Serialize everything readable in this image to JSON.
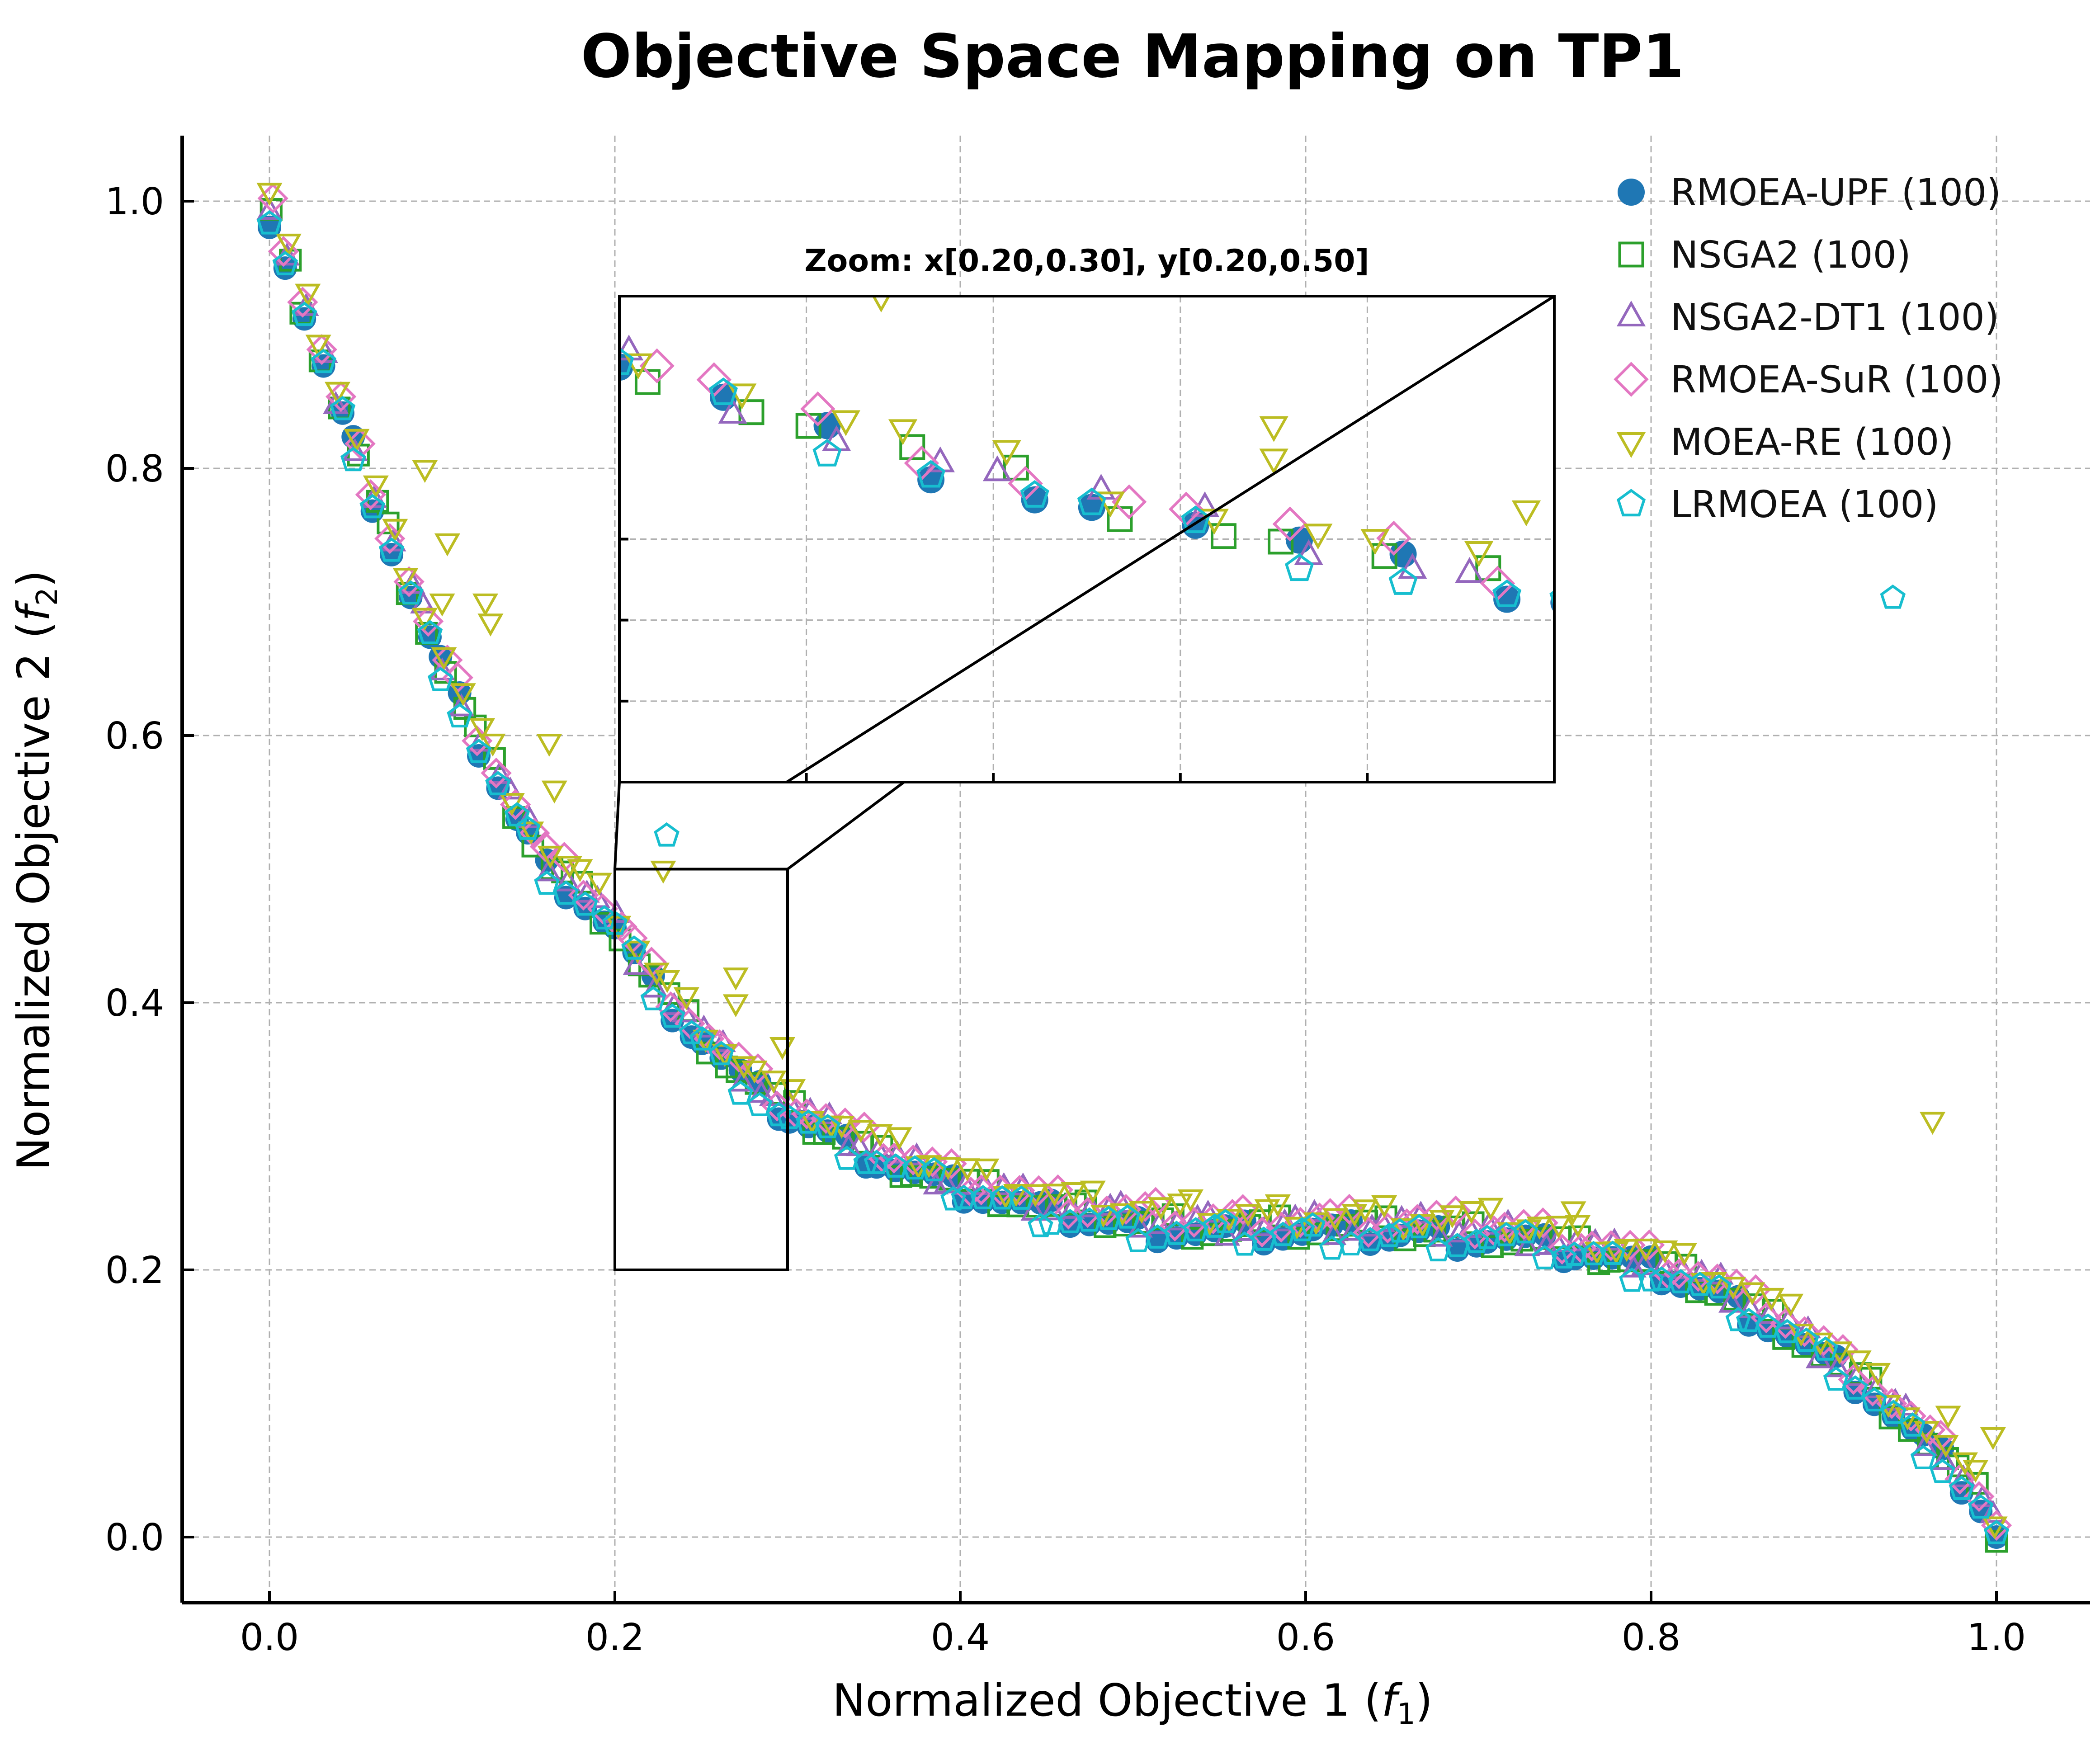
{
  "chart_data": {
    "type": "scatter",
    "title": "Objective Space Mapping on TP1",
    "xlabel": "Normalized Objective 1",
    "xlabel_sym": "f",
    "xlabel_sub": "1",
    "ylabel": "Normalized Objective 2",
    "ylabel_sym": "f",
    "ylabel_sub": "2",
    "xlim": [
      -0.05,
      1.05
    ],
    "ylim": [
      -0.05,
      1.05
    ],
    "xticks": [
      0.0,
      0.2,
      0.4,
      0.6,
      0.8,
      1.0
    ],
    "yticks": [
      0.0,
      0.2,
      0.4,
      0.6,
      0.8,
      1.0
    ],
    "xtick_labels": [
      "0.0",
      "0.2",
      "0.4",
      "0.6",
      "0.8",
      "1.0"
    ],
    "ytick_labels": [
      "0.0",
      "0.2",
      "0.4",
      "0.6",
      "0.8",
      "1.0"
    ],
    "grid": true,
    "legend_position": "upper-right",
    "front_curve": {
      "x": [
        0.0,
        0.02,
        0.04,
        0.06,
        0.08,
        0.1,
        0.12,
        0.14,
        0.16,
        0.18,
        0.2,
        0.22,
        0.24,
        0.26,
        0.28,
        0.3,
        0.33,
        0.36,
        0.4,
        0.45,
        0.5,
        0.55,
        0.6,
        0.65,
        0.7,
        0.73,
        0.76,
        0.8,
        0.84,
        0.88,
        0.92,
        0.95,
        0.97,
        0.99,
        1.0
      ],
      "y": [
        0.99,
        0.915,
        0.845,
        0.775,
        0.71,
        0.65,
        0.595,
        0.545,
        0.5,
        0.48,
        0.455,
        0.415,
        0.385,
        0.358,
        0.335,
        0.315,
        0.296,
        0.278,
        0.26,
        0.243,
        0.232,
        0.228,
        0.228,
        0.226,
        0.224,
        0.22,
        0.212,
        0.2,
        0.18,
        0.152,
        0.115,
        0.08,
        0.055,
        0.025,
        0.0
      ]
    },
    "series": [
      {
        "name": "RMOEA-UPF (100)",
        "marker": "circle",
        "color": "#1f77b4",
        "filled": true,
        "offset": 0.0
      },
      {
        "name": "NSGA2 (100)",
        "marker": "square",
        "color": "#2ca02c",
        "filled": false,
        "offset": 0.004
      },
      {
        "name": "NSGA2-DT1 (100)",
        "marker": "triangle-up",
        "color": "#9467bd",
        "filled": false,
        "offset": 0.006
      },
      {
        "name": "RMOEA-SuR (100)",
        "marker": "diamond",
        "color": "#e377c2",
        "filled": false,
        "offset": 0.01
      },
      {
        "name": "MOEA-RE (100)",
        "marker": "triangle-down",
        "color": "#bcbd22",
        "filled": false,
        "offset": 0.015
      },
      {
        "name": "LRMOEA (100)",
        "marker": "pentagon",
        "color": "#17becf",
        "filled": false,
        "offset": -0.002
      }
    ],
    "outliers": [
      {
        "series": 4,
        "x": 0.09,
        "y": 0.8
      },
      {
        "series": 4,
        "x": 0.103,
        "y": 0.745
      },
      {
        "series": 4,
        "x": 0.1,
        "y": 0.7
      },
      {
        "series": 4,
        "x": 0.125,
        "y": 0.7
      },
      {
        "series": 4,
        "x": 0.128,
        "y": 0.685
      },
      {
        "series": 4,
        "x": 0.162,
        "y": 0.595
      },
      {
        "series": 4,
        "x": 0.165,
        "y": 0.56
      },
      {
        "series": 4,
        "x": 0.228,
        "y": 0.5
      },
      {
        "series": 4,
        "x": 0.27,
        "y": 0.42
      },
      {
        "series": 4,
        "x": 0.27,
        "y": 0.4
      },
      {
        "series": 4,
        "x": 0.297,
        "y": 0.368
      },
      {
        "series": 4,
        "x": 0.755,
        "y": 0.245
      },
      {
        "series": 4,
        "x": 0.963,
        "y": 0.312
      },
      {
        "series": 4,
        "x": 0.972,
        "y": 0.092
      },
      {
        "series": 4,
        "x": 0.998,
        "y": 0.076
      },
      {
        "series": 5,
        "x": 0.23,
        "y": 0.525
      },
      {
        "series": 5,
        "x": 0.94,
        "y": 0.703
      }
    ],
    "inset": {
      "title": "Zoom: x[0.20,0.30], y[0.20,0.50]",
      "xlim": [
        0.2,
        0.3
      ],
      "ylim": [
        0.2,
        0.5
      ],
      "xticks": [
        0.22,
        0.24,
        0.26,
        0.28
      ],
      "yticks": [
        0.25,
        0.3,
        0.35
      ]
    }
  }
}
